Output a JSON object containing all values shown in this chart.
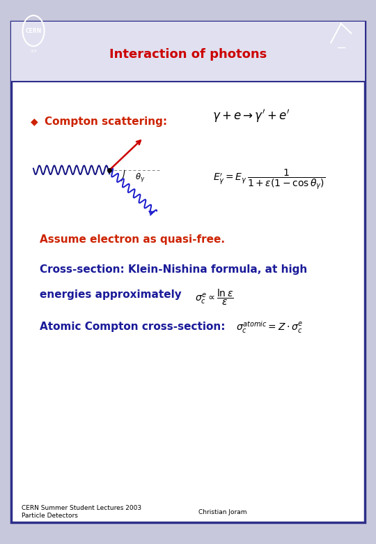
{
  "title": "Interaction of photons",
  "title_color": "#cc0000",
  "title_fontsize": 13,
  "slide_bg": "#ffffff",
  "outer_bg": "#c8c8dc",
  "border_color": "#2e2e8a",
  "header_bg": "#e0e0f0",
  "bullet_color": "#cc2200",
  "text_blue": "#1a1a99",
  "text_red": "#cc2200",
  "bullet_label": "Compton scattering:",
  "text1": "Assume electron as quasi-free.",
  "text2_line1": "Cross-section: Klein-Nishina formula, at high",
  "text2_line2": "energies approximately",
  "text3": "Atomic Compton cross-section:",
  "footer_left1": "CERN Summer Student Lectures 2003",
  "footer_left2": "Particle Detectors",
  "footer_right": "Christian Joram"
}
